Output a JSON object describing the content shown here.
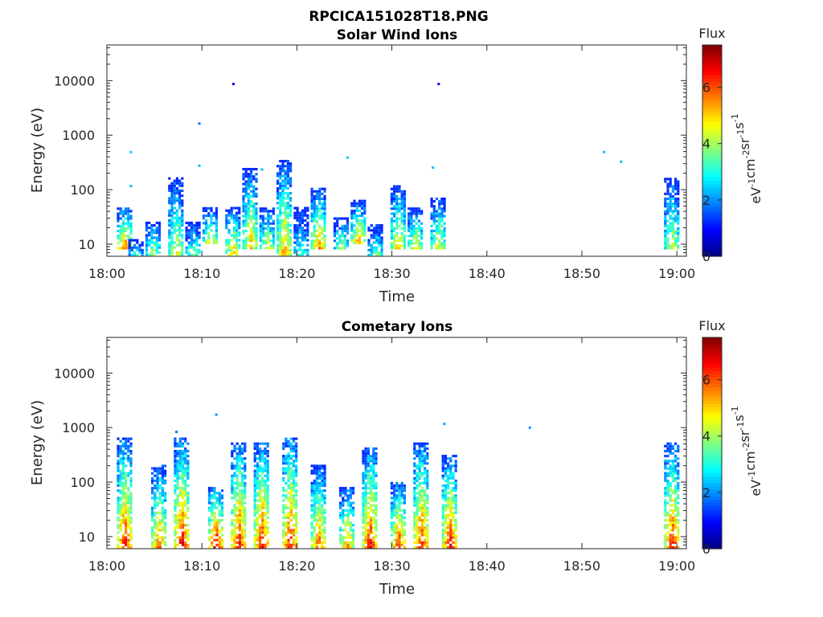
{
  "figure": {
    "file_title": "RPCICA151028T18.PNG"
  },
  "colorbar": {
    "title": "Flux",
    "unit_label": "eV-1cm-2sr-1s-1",
    "unit_parts": [
      {
        "base": "eV",
        "sup": "-1"
      },
      {
        "base": "cm",
        "sup": "-2"
      },
      {
        "base": "sr",
        "sup": "-1"
      },
      {
        "base": "s",
        "sup": "-1"
      }
    ],
    "ticks": [
      "0",
      "2",
      "4",
      "6"
    ],
    "range": [
      0,
      7.5
    ],
    "colormap": "jet"
  },
  "chart_data": [
    {
      "type": "heatmap",
      "title": "Solar Wind Ions",
      "xlabel": "Time",
      "ylabel": "Energy (eV)",
      "x_ticks": [
        "18:00",
        "18:10",
        "18:20",
        "18:30",
        "18:40",
        "18:50",
        "19:00"
      ],
      "y_ticks": [
        "10",
        "100",
        "1000",
        "10000"
      ],
      "y_scale": "log",
      "xlim": [
        "18:00",
        "19:01"
      ],
      "ylim": [
        6,
        45000
      ],
      "grid": false,
      "bursts": [
        {
          "t": 18.03,
          "e_lo": 8,
          "e_hi": 45,
          "peak": 6.2,
          "spread": 0.2
        },
        {
          "t": 18.05,
          "e_lo": 6,
          "e_hi": 12,
          "peak": 3.0,
          "spread": 0.15
        },
        {
          "t": 18.08,
          "e_lo": 6,
          "e_hi": 25,
          "peak": 4.5,
          "spread": 0.2
        },
        {
          "t": 18.12,
          "e_lo": 6,
          "e_hi": 160,
          "peak": 4.8,
          "spread": 0.3
        },
        {
          "t": 18.15,
          "e_lo": 6,
          "e_hi": 25,
          "peak": 3.8,
          "spread": 0.2
        },
        {
          "t": 18.18,
          "e_lo": 10,
          "e_hi": 45,
          "peak": 5.0,
          "spread": 0.4
        },
        {
          "t": 18.22,
          "e_lo": 6,
          "e_hi": 45,
          "peak": 5.4,
          "spread": 0.25
        },
        {
          "t": 18.25,
          "e_lo": 8,
          "e_hi": 250,
          "peak": 5.3,
          "spread": 0.3
        },
        {
          "t": 18.28,
          "e_lo": 8,
          "e_hi": 45,
          "peak": 4.8,
          "spread": 0.25
        },
        {
          "t": 18.31,
          "e_lo": 6,
          "e_hi": 350,
          "peak": 5.6,
          "spread": 0.3
        },
        {
          "t": 18.34,
          "e_lo": 6,
          "e_hi": 45,
          "peak": 3.5,
          "spread": 0.25
        },
        {
          "t": 18.37,
          "e_lo": 8,
          "e_hi": 100,
          "peak": 5.8,
          "spread": 0.25
        },
        {
          "t": 18.41,
          "e_lo": 8,
          "e_hi": 30,
          "peak": 4.2,
          "spread": 0.2
        },
        {
          "t": 18.44,
          "e_lo": 10,
          "e_hi": 60,
          "peak": 5.5,
          "spread": 0.3
        },
        {
          "t": 18.47,
          "e_lo": 6,
          "e_hi": 22,
          "peak": 3.8,
          "spread": 0.2
        },
        {
          "t": 18.51,
          "e_lo": 8,
          "e_hi": 110,
          "peak": 5.2,
          "spread": 0.3
        },
        {
          "t": 18.54,
          "e_lo": 8,
          "e_hi": 45,
          "peak": 5.0,
          "spread": 0.25
        },
        {
          "t": 18.58,
          "e_lo": 8,
          "e_hi": 70,
          "peak": 4.8,
          "spread": 0.3
        },
        {
          "t": 18.99,
          "e_lo": 8,
          "e_hi": 160,
          "peak": 4.5,
          "spread": 0.3
        }
      ],
      "isolated_points": [
        {
          "t": 18.04,
          "e": 480,
          "v": 2.5
        },
        {
          "t": 18.04,
          "e": 115,
          "v": 2.3
        },
        {
          "t": 18.16,
          "e": 1600,
          "v": 1.8
        },
        {
          "t": 18.16,
          "e": 270,
          "v": 2.3
        },
        {
          "t": 18.22,
          "e": 8500,
          "v": 1.0
        },
        {
          "t": 18.27,
          "e": 230,
          "v": 2.3
        },
        {
          "t": 18.42,
          "e": 380,
          "v": 2.4
        },
        {
          "t": 18.58,
          "e": 8500,
          "v": 1.0
        },
        {
          "t": 18.57,
          "e": 250,
          "v": 2.3
        },
        {
          "t": 18.87,
          "e": 480,
          "v": 2.4
        },
        {
          "t": 18.9,
          "e": 320,
          "v": 2.3
        }
      ]
    },
    {
      "type": "heatmap",
      "title": "Cometary Ions",
      "xlabel": "Time",
      "ylabel": "Energy (eV)",
      "x_ticks": [
        "18:00",
        "18:10",
        "18:20",
        "18:30",
        "18:40",
        "18:50",
        "19:00"
      ],
      "y_ticks": [
        "10",
        "100",
        "1000",
        "10000"
      ],
      "y_scale": "log",
      "xlim": [
        "18:00",
        "19:01"
      ],
      "ylim": [
        6,
        45000
      ],
      "grid": false,
      "bursts": [
        {
          "t": 18.03,
          "e_lo": 6,
          "e_hi": 600,
          "peak": 6.8,
          "spread": 0.35
        },
        {
          "t": 18.09,
          "e_lo": 6,
          "e_hi": 200,
          "peak": 6.0,
          "spread": 0.3
        },
        {
          "t": 18.13,
          "e_lo": 6,
          "e_hi": 600,
          "peak": 7.0,
          "spread": 0.4
        },
        {
          "t": 18.19,
          "e_lo": 6,
          "e_hi": 80,
          "peak": 7.2,
          "spread": 0.35
        },
        {
          "t": 18.23,
          "e_lo": 6,
          "e_hi": 500,
          "peak": 6.8,
          "spread": 0.35
        },
        {
          "t": 18.27,
          "e_lo": 6,
          "e_hi": 500,
          "peak": 6.9,
          "spread": 0.35
        },
        {
          "t": 18.32,
          "e_lo": 6,
          "e_hi": 650,
          "peak": 6.9,
          "spread": 0.4
        },
        {
          "t": 18.37,
          "e_lo": 6,
          "e_hi": 200,
          "peak": 6.2,
          "spread": 0.3
        },
        {
          "t": 18.42,
          "e_lo": 6,
          "e_hi": 80,
          "peak": 5.8,
          "spread": 0.3
        },
        {
          "t": 18.46,
          "e_lo": 6,
          "e_hi": 400,
          "peak": 6.9,
          "spread": 0.35
        },
        {
          "t": 18.51,
          "e_lo": 6,
          "e_hi": 100,
          "peak": 6.5,
          "spread": 0.3
        },
        {
          "t": 18.55,
          "e_lo": 6,
          "e_hi": 500,
          "peak": 6.7,
          "spread": 0.35
        },
        {
          "t": 18.6,
          "e_lo": 6,
          "e_hi": 300,
          "peak": 6.8,
          "spread": 0.35
        },
        {
          "t": 18.99,
          "e_lo": 6,
          "e_hi": 500,
          "peak": 6.8,
          "spread": 0.35
        }
      ],
      "isolated_points": [
        {
          "t": 18.12,
          "e": 820,
          "v": 1.8
        },
        {
          "t": 18.19,
          "e": 1700,
          "v": 2.0
        },
        {
          "t": 18.59,
          "e": 1150,
          "v": 2.2
        },
        {
          "t": 18.74,
          "e": 980,
          "v": 2.0
        }
      ]
    }
  ]
}
